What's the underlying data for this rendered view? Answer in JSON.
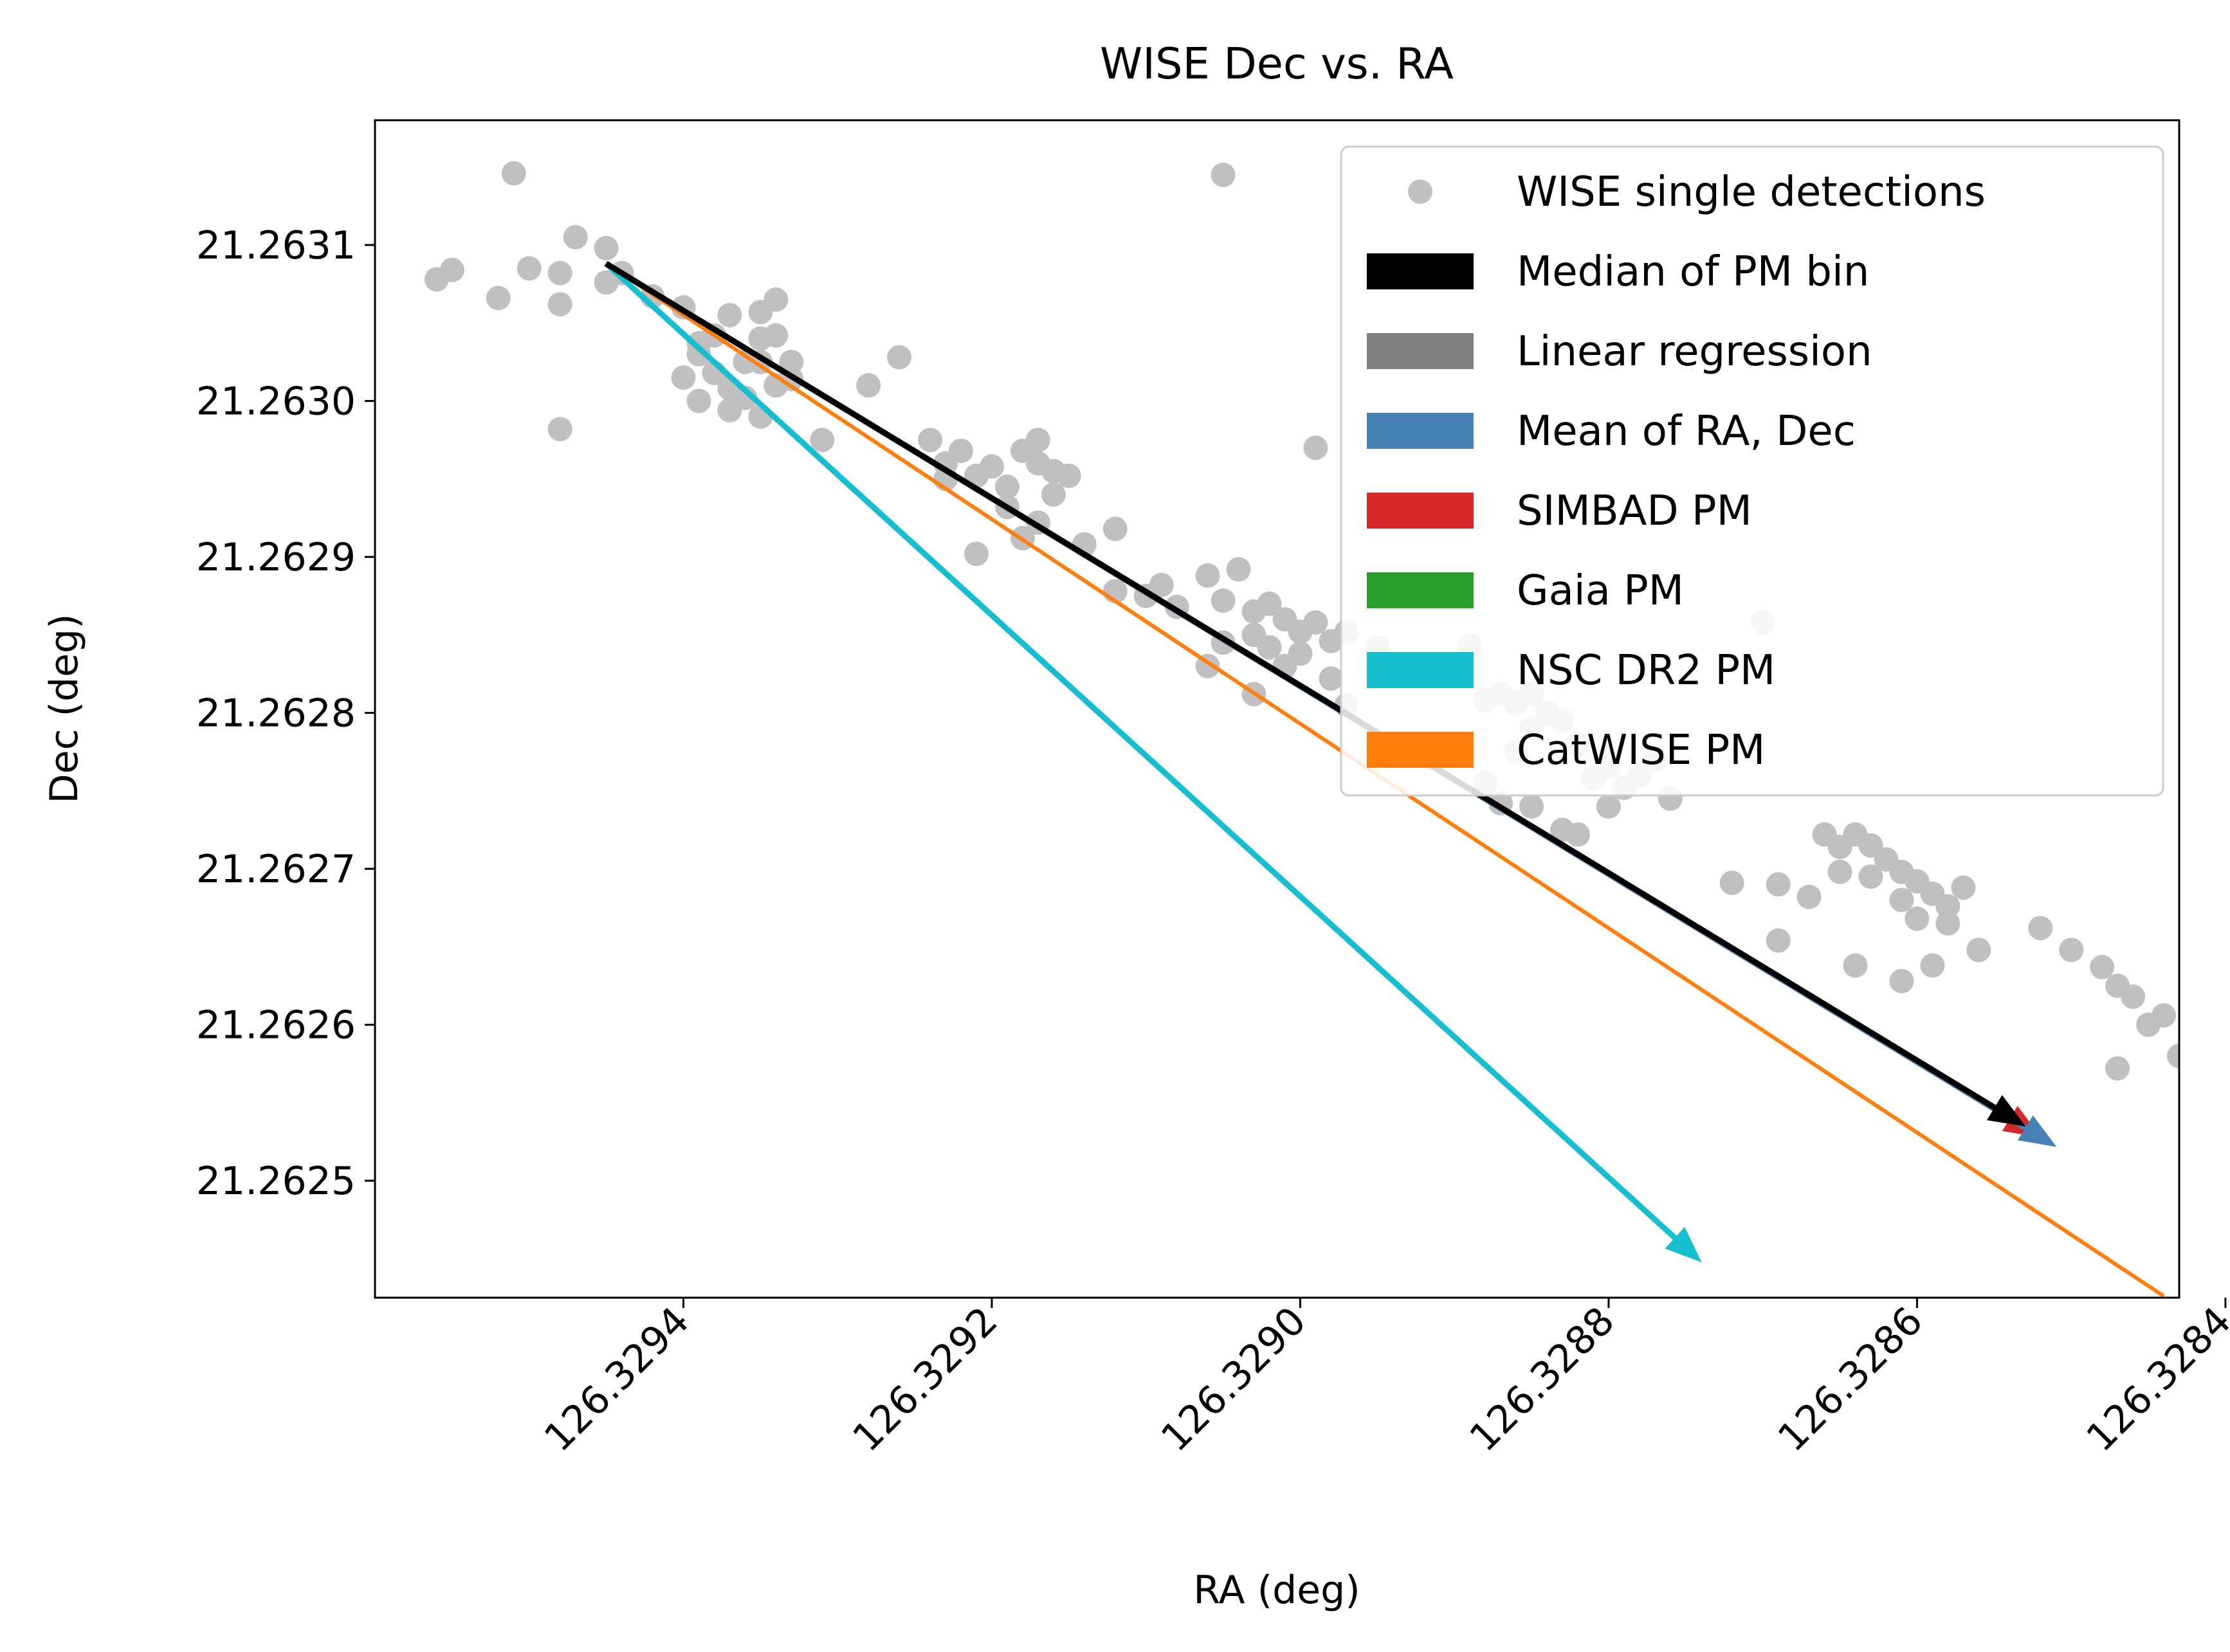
{
  "chart_data": {
    "type": "scatter",
    "title": "WISE Dec vs. RA",
    "xlabel": "RA (deg)",
    "ylabel": "Dec (deg)",
    "x_inverted": true,
    "xlim": [
      126.3296,
      126.32843
    ],
    "ylim": [
      21.262425,
      21.26318
    ],
    "xticks": [
      "126.3294",
      "126.3292",
      "126.3290",
      "126.3288",
      "126.3286",
      "126.3284"
    ],
    "xtick_values": [
      126.3294,
      126.3292,
      126.329,
      126.3288,
      126.3286,
      126.3284
    ],
    "yticks": [
      "21.2625",
      "21.2626",
      "21.2627",
      "21.2628",
      "21.2629",
      "21.2630",
      "21.2631"
    ],
    "ytick_values": [
      21.2625,
      21.2626,
      21.2627,
      21.2628,
      21.2629,
      21.263,
      21.2631
    ],
    "grid": false,
    "legend_position": "top-right",
    "legend": [
      {
        "label": "WISE single detections",
        "color": "#c0c0c0",
        "marker": "dot"
      },
      {
        "label": "Median of PM bin",
        "color": "#000000",
        "marker": "patch"
      },
      {
        "label": "Linear regression",
        "color": "#808080",
        "marker": "patch"
      },
      {
        "label": "Mean of RA, Dec",
        "color": "#4682b4",
        "marker": "patch"
      },
      {
        "label": "SIMBAD PM",
        "color": "#d62728",
        "marker": "patch"
      },
      {
        "label": "Gaia PM",
        "color": "#2ca02c",
        "marker": "patch"
      },
      {
        "label": "NSC DR2 PM",
        "color": "#17becf",
        "marker": "patch"
      },
      {
        "label": "CatWISE PM",
        "color": "#ff7f0e",
        "marker": "patch"
      }
    ],
    "scatter_series": {
      "name": "WISE single detections",
      "color": "#c0c0c0",
      "points": [
        [
          126.32956,
          21.263078
        ],
        [
          126.32955,
          21.263084
        ],
        [
          126.32952,
          21.263066
        ],
        [
          126.32951,
          21.263146
        ],
        [
          126.3295,
          21.263085
        ],
        [
          126.32948,
          21.263062
        ],
        [
          126.32948,
          21.263082
        ],
        [
          126.32947,
          21.263105
        ],
        [
          126.32945,
          21.263098
        ],
        [
          126.32944,
          21.263082
        ],
        [
          126.32945,
          21.263076
        ],
        [
          126.32948,
          21.262982
        ],
        [
          126.32942,
          21.263067
        ],
        [
          126.3294,
          21.26306
        ],
        [
          126.32939,
          21.263037
        ],
        [
          126.32938,
          21.263042
        ],
        [
          126.32937,
          21.263055
        ],
        [
          126.32936,
          21.263025
        ],
        [
          126.32935,
          21.26304
        ],
        [
          126.32935,
          21.263057
        ],
        [
          126.32934,
          21.263065
        ],
        [
          126.32934,
          21.263042
        ],
        [
          126.32933,
          21.263025
        ],
        [
          126.32934,
          21.26301
        ],
        [
          126.32937,
          21.263008
        ],
        [
          126.32938,
          21.263018
        ],
        [
          126.32939,
          21.263
        ],
        [
          126.3294,
          21.263015
        ],
        [
          126.32935,
          21.26299
        ],
        [
          126.32933,
          21.263014
        ],
        [
          126.32937,
          21.262994
        ],
        [
          126.32931,
          21.262975
        ],
        [
          126.32939,
          21.26303
        ],
        [
          126.32936,
          21.263002
        ],
        [
          126.32935,
          21.263025
        ],
        [
          126.32928,
          21.26301
        ],
        [
          126.32926,
          21.263028
        ],
        [
          126.32924,
          21.262975
        ],
        [
          126.32923,
          21.26296
        ],
        [
          126.32922,
          21.262968
        ],
        [
          126.32921,
          21.262952
        ],
        [
          126.3292,
          21.262958
        ],
        [
          126.32919,
          21.262945
        ],
        [
          126.32918,
          21.262968
        ],
        [
          126.32917,
          21.26296
        ],
        [
          126.32916,
          21.262955
        ],
        [
          126.32915,
          21.262952
        ],
        [
          126.32919,
          21.262932
        ],
        [
          126.32918,
          21.262912
        ],
        [
          126.32917,
          21.262922
        ],
        [
          126.32916,
          21.26294
        ],
        [
          126.32914,
          21.262908
        ],
        [
          126.32912,
          21.262918
        ],
        [
          126.32921,
          21.262902
        ],
        [
          126.32923,
          21.26295
        ],
        [
          126.32912,
          21.262878
        ],
        [
          126.32917,
          21.262975
        ],
        [
          126.3291,
          21.262875
        ],
        [
          126.32909,
          21.262882
        ],
        [
          126.32908,
          21.262868
        ],
        [
          126.32906,
          21.262888
        ],
        [
          126.32905,
          21.262872
        ],
        [
          126.32904,
          21.262892
        ],
        [
          126.32903,
          21.262865
        ],
        [
          126.32902,
          21.26287
        ],
        [
          126.32901,
          21.26286
        ],
        [
          126.329,
          21.262852
        ],
        [
          126.32899,
          21.262858
        ],
        [
          126.32903,
          21.26285
        ],
        [
          126.32905,
          21.262845
        ],
        [
          126.329,
          21.262838
        ],
        [
          126.32898,
          21.262846
        ],
        [
          126.32897,
          21.262852
        ],
        [
          126.32906,
          21.26283
        ],
        [
          126.32903,
          21.262812
        ],
        [
          126.32898,
          21.262822
        ],
        [
          126.32897,
          21.262805
        ],
        [
          126.32895,
          21.262842
        ],
        [
          126.32905,
          21.263145
        ],
        [
          126.32899,
          21.26297
        ],
        [
          126.32901,
          21.26283
        ],
        [
          126.32902,
          21.262842
        ],
        [
          126.32889,
          21.262843
        ],
        [
          126.32888,
          21.262808
        ],
        [
          126.32887,
          21.262812
        ],
        [
          126.32886,
          21.262806
        ],
        [
          126.32885,
          21.262812
        ],
        [
          126.32884,
          21.2628
        ],
        [
          126.32885,
          21.26279
        ],
        [
          126.32883,
          21.262795
        ],
        [
          126.32882,
          21.26278
        ],
        [
          126.3288,
          21.262775
        ],
        [
          126.3288,
          21.262765
        ],
        [
          126.32878,
          21.26276
        ],
        [
          126.32877,
          21.26277
        ],
        [
          126.32881,
          21.262758
        ],
        [
          126.32885,
          21.26274
        ],
        [
          126.32883,
          21.262725
        ],
        [
          126.32882,
          21.262722
        ],
        [
          126.3288,
          21.26274
        ],
        [
          126.32876,
          21.262745
        ],
        [
          126.32879,
          21.262752
        ],
        [
          126.32888,
          21.262755
        ],
        [
          126.32886,
          21.262775
        ],
        [
          126.32887,
          21.262742
        ],
        [
          126.3287,
          21.262858
        ],
        [
          126.32872,
          21.262691
        ],
        [
          126.32869,
          21.26269
        ],
        [
          126.32866,
          21.262722
        ],
        [
          126.32865,
          21.262714
        ],
        [
          126.32864,
          21.262722
        ],
        [
          126.32863,
          21.262715
        ],
        [
          126.32862,
          21.262706
        ],
        [
          126.32861,
          21.262698
        ],
        [
          126.3286,
          21.262692
        ],
        [
          126.32859,
          21.262684
        ],
        [
          126.32858,
          21.262676
        ],
        [
          126.32863,
          21.262695
        ],
        [
          126.32861,
          21.26268
        ],
        [
          126.3286,
          21.262668
        ],
        [
          126.32858,
          21.262665
        ],
        [
          126.32857,
          21.262688
        ],
        [
          126.32869,
          21.262654
        ],
        [
          126.32864,
          21.262638
        ],
        [
          126.32861,
          21.262628
        ],
        [
          126.32859,
          21.262638
        ],
        [
          126.32856,
          21.262648
        ],
        [
          126.32867,
          21.262682
        ],
        [
          126.32865,
          21.262698
        ],
        [
          126.32852,
          21.262662
        ],
        [
          126.3285,
          21.262648
        ],
        [
          126.32848,
          21.262637
        ],
        [
          126.32847,
          21.262625
        ],
        [
          126.32846,
          21.262618
        ],
        [
          126.32845,
          21.2626
        ],
        [
          126.32844,
          21.262606
        ],
        [
          126.32842,
          21.262649
        ],
        [
          126.3284,
          21.262642
        ],
        [
          126.32838,
          21.262632
        ],
        [
          126.32837,
          21.262628
        ],
        [
          126.32838,
          21.262645
        ],
        [
          126.32836,
          21.26262
        ],
        [
          126.32835,
          21.262606
        ],
        [
          126.32833,
          21.262619
        ],
        [
          126.32831,
          21.262629
        ],
        [
          126.32837,
          21.262602
        ],
        [
          126.32843,
          21.26258
        ],
        [
          126.32841,
          21.262592
        ],
        [
          126.32839,
          21.262578
        ],
        [
          126.32836,
          21.262586
        ],
        [
          126.32832,
          21.262614
        ],
        [
          126.32826,
          21.262608
        ],
        [
          126.32847,
          21.262572
        ],
        [
          126.32835,
          21.262554
        ],
        [
          126.32833,
          21.262549
        ],
        [
          126.3283,
          21.262558
        ],
        [
          126.32828,
          21.262649
        ],
        [
          126.32822,
          21.262558
        ],
        [
          126.3282,
          21.262562
        ],
        [
          126.32818,
          21.262551
        ],
        [
          126.32816,
          21.262541
        ],
        [
          126.32818,
          21.262528
        ],
        [
          126.32815,
          21.26253
        ],
        [
          126.32814,
          21.26252
        ],
        [
          126.32812,
          21.262526
        ],
        [
          126.3281,
          21.262522
        ],
        [
          126.32808,
          21.262529
        ],
        [
          126.32813,
          21.26251
        ],
        [
          126.32811,
          21.262498
        ],
        [
          126.32809,
          21.262508
        ],
        [
          126.32816,
          21.262505
        ],
        [
          126.32812,
          21.262494
        ],
        [
          126.32819,
          21.262528
        ],
        [
          126.32823,
          21.262545
        ],
        [
          126.32806,
          21.26254
        ],
        [
          126.32804,
          21.262534
        ],
        [
          126.32801,
          21.262524
        ],
        [
          126.32798,
          21.262518
        ],
        [
          126.32819,
          21.262475
        ],
        [
          126.32816,
          21.26246
        ],
        [
          126.32813,
          21.262482
        ],
        [
          126.32808,
          21.262492
        ],
        [
          126.32794,
          21.262517
        ],
        [
          126.32786,
          21.262597
        ],
        [
          126.32785,
          21.262566
        ]
      ]
    },
    "arrows": [
      {
        "name": "CatWISE PM",
        "color": "#ff7f0e",
        "from": [
          126.32945,
          21.263088
        ],
        "to": [
          126.32844,
          21.262426
        ],
        "head": false
      },
      {
        "name": "NSC DR2 PM",
        "color": "#17becf",
        "from": [
          126.32945,
          21.263088
        ],
        "to": [
          126.32874,
          21.262448
        ],
        "head": true
      },
      {
        "name": "Gaia PM",
        "color": "#2ca02c",
        "from": [
          126.32945,
          21.263088
        ],
        "to": [
          126.32852,
          21.262528
        ],
        "head": true
      },
      {
        "name": "SIMBAD PM",
        "color": "#d62728",
        "from": [
          126.32945,
          21.263088
        ],
        "to": [
          126.32852,
          21.262528
        ],
        "head": true
      },
      {
        "name": "Mean of RA, Dec",
        "color": "#4682b4",
        "from": [
          126.32945,
          21.263088
        ],
        "to": [
          126.32851,
          21.262522
        ],
        "head": true
      },
      {
        "name": "Linear regression",
        "color": "#808080",
        "from": [
          126.32945,
          21.263088
        ],
        "to": [
          126.32853,
          21.262535
        ],
        "head": true
      },
      {
        "name": "Median of PM bin",
        "color": "#000000",
        "from": [
          126.32945,
          21.263088
        ],
        "to": [
          126.32853,
          21.262535
        ],
        "head": true
      }
    ]
  }
}
